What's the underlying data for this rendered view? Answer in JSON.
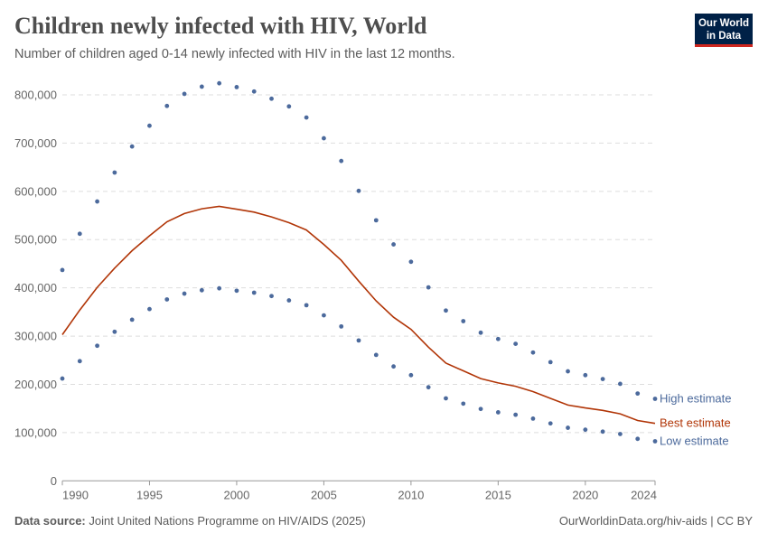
{
  "header": {
    "title": "Children newly infected with HIV, World",
    "subtitle": "Number of children aged 0-14 newly infected with HIV in the last 12 months.",
    "logo_line1": "Our World",
    "logo_line2": "in Data"
  },
  "footer": {
    "source_label": "Data source:",
    "source": "Joint United Nations Programme on HIV/AIDS (2025)",
    "url_license": "OurWorldinData.org/hiv-aids | CC BY"
  },
  "colors": {
    "best": "#b13507",
    "bounds": "#4c6a9c",
    "logo_bg": "#002147",
    "logo_accent": "#ce261e"
  },
  "chart_data": {
    "type": "line",
    "title": "Children newly infected with HIV, World",
    "xlim": [
      1990,
      2024
    ],
    "ylim": [
      0,
      800000
    ],
    "x_ticks": [
      1990,
      1995,
      2000,
      2005,
      2010,
      2015,
      2020,
      2024
    ],
    "y_ticks": [
      0,
      100000,
      200000,
      300000,
      400000,
      500000,
      600000,
      700000,
      800000
    ],
    "y_tick_labels": [
      "0",
      "100,000",
      "200,000",
      "300,000",
      "400,000",
      "500,000",
      "600,000",
      "700,000",
      "800,000"
    ],
    "grid": "horizontal dashed",
    "legend": "inline-right",
    "x": [
      1990,
      1991,
      1992,
      1993,
      1994,
      1995,
      1996,
      1997,
      1998,
      1999,
      2000,
      2001,
      2002,
      2003,
      2004,
      2005,
      2006,
      2007,
      2008,
      2009,
      2010,
      2011,
      2012,
      2013,
      2014,
      2015,
      2016,
      2017,
      2018,
      2019,
      2020,
      2021,
      2022,
      2023,
      2024
    ],
    "series": [
      {
        "name": "High estimate",
        "style": "dots",
        "color": "#4c6a9c",
        "values": [
          437000,
          512000,
          579000,
          639000,
          693000,
          736000,
          777000,
          802000,
          817000,
          824000,
          816000,
          807000,
          792000,
          776000,
          753000,
          710000,
          663000,
          601000,
          540000,
          490000,
          454000,
          401000,
          353000,
          331000,
          307000,
          294000,
          284000,
          266000,
          246000,
          227000,
          219000,
          211000,
          201000,
          181000,
          170000
        ]
      },
      {
        "name": "Best estimate",
        "style": "line",
        "color": "#b13507",
        "values": [
          303000,
          354000,
          401000,
          441000,
          477000,
          508000,
          537000,
          554000,
          564000,
          569000,
          563000,
          557000,
          547000,
          535000,
          520000,
          490000,
          457000,
          414000,
          373000,
          339000,
          314000,
          277000,
          244000,
          228000,
          212000,
          203000,
          196000,
          185000,
          171000,
          157000,
          151000,
          146000,
          139000,
          125000,
          119000
        ]
      },
      {
        "name": "Low estimate",
        "style": "dots",
        "color": "#4c6a9c",
        "values": [
          212000,
          248000,
          280000,
          309000,
          334000,
          356000,
          376000,
          388000,
          395000,
          399000,
          394000,
          390000,
          383000,
          374000,
          364000,
          343000,
          320000,
          291000,
          261000,
          237000,
          219000,
          194000,
          171000,
          160000,
          149000,
          142000,
          137000,
          129000,
          119000,
          110000,
          106000,
          102000,
          97000,
          87000,
          82000
        ]
      }
    ]
  }
}
